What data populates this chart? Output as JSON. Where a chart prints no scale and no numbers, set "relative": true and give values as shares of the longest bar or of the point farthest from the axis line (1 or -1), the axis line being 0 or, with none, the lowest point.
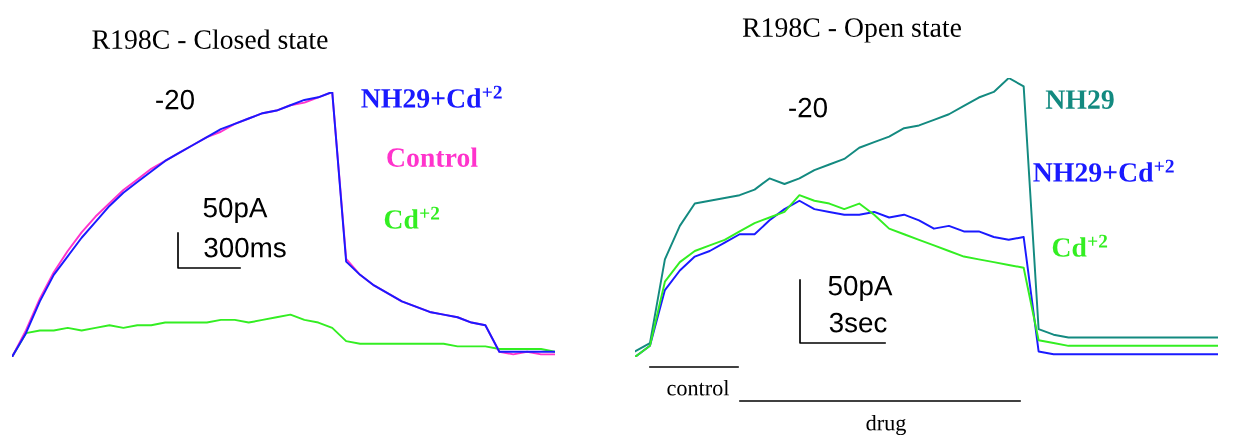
{
  "chart_data": [
    {
      "type": "line",
      "title": "R198C - Closed state",
      "relative": true,
      "annotations": [
        "-20",
        "50pA",
        "300ms"
      ],
      "categories": [
        null,
        null,
        null,
        null,
        null,
        null,
        null,
        null,
        null,
        null,
        null,
        null,
        null,
        null,
        null,
        null,
        null,
        null,
        null,
        null,
        null,
        null,
        null,
        null,
        null,
        null,
        null,
        null,
        null,
        null,
        null,
        null,
        null,
        null,
        null,
        null,
        null,
        null,
        null,
        null
      ],
      "series": [
        {
          "name": "Cd$^{+2}$",
          "color": "#33ee22",
          "values": [
            0.0,
            0.09,
            0.1,
            0.1,
            0.11,
            0.1,
            0.11,
            0.12,
            0.11,
            0.12,
            0.12,
            0.13,
            0.13,
            0.13,
            0.13,
            0.14,
            0.14,
            0.13,
            0.14,
            0.15,
            0.16,
            0.14,
            0.13,
            0.11,
            0.06,
            0.05,
            0.05,
            0.05,
            0.05,
            0.05,
            0.05,
            0.05,
            0.04,
            0.04,
            0.04,
            0.03,
            0.03,
            0.03,
            0.03,
            0.02
          ]
        },
        {
          "name": "Control",
          "color": "#ff33cc",
          "values": [
            0.0,
            0.1,
            0.22,
            0.32,
            0.4,
            0.47,
            0.53,
            0.58,
            0.63,
            0.67,
            0.71,
            0.74,
            0.77,
            0.8,
            0.83,
            0.85,
            0.88,
            0.9,
            0.92,
            0.93,
            0.95,
            0.96,
            0.98,
            1.0,
            0.37,
            0.31,
            0.27,
            0.24,
            0.21,
            0.19,
            0.17,
            0.16,
            0.15,
            0.13,
            0.12,
            0.02,
            0.01,
            0.02,
            0.01,
            0.01
          ]
        },
        {
          "name": "NH29+Cd$^{+2}$",
          "color": "#1a1aff",
          "values": [
            0.0,
            0.09,
            0.21,
            0.31,
            0.38,
            0.45,
            0.51,
            0.57,
            0.62,
            0.66,
            0.7,
            0.74,
            0.77,
            0.8,
            0.83,
            0.86,
            0.88,
            0.9,
            0.92,
            0.93,
            0.95,
            0.97,
            0.98,
            1.0,
            0.36,
            0.31,
            0.27,
            0.24,
            0.21,
            0.19,
            0.17,
            0.16,
            0.15,
            0.13,
            0.12,
            0.02,
            0.02,
            0.02,
            0.02,
            0.02
          ]
        }
      ]
    },
    {
      "type": "line",
      "title": "R198C - Open state",
      "relative": true,
      "annotations": [
        "-20",
        "50pA",
        "3sec",
        "control",
        "drug"
      ],
      "categories": [
        null,
        null,
        null,
        null,
        null,
        null,
        null,
        null,
        null,
        null,
        null,
        null,
        null,
        null,
        null,
        null,
        null,
        null,
        null,
        null,
        null,
        null,
        null,
        null,
        null,
        null,
        null,
        null,
        null,
        null,
        null,
        null,
        null,
        null,
        null,
        null,
        null,
        null,
        null,
        null
      ],
      "series": [
        {
          "name": "NH29",
          "color": "#138a80",
          "values": [
            0.02,
            0.05,
            0.35,
            0.47,
            0.55,
            0.56,
            0.57,
            0.58,
            0.6,
            0.64,
            0.62,
            0.64,
            0.67,
            0.69,
            0.71,
            0.75,
            0.77,
            0.79,
            0.82,
            0.83,
            0.85,
            0.87,
            0.9,
            0.93,
            0.95,
            1.0,
            0.97,
            0.1,
            0.08,
            0.07,
            0.07,
            0.07,
            0.07,
            0.07,
            0.07,
            0.07,
            0.07,
            0.07,
            0.07,
            0.07
          ]
        },
        {
          "name": "NH29+Cd$^{+2}$",
          "color": "#1a1aff",
          "values": [
            0.0,
            0.04,
            0.24,
            0.31,
            0.36,
            0.38,
            0.41,
            0.44,
            0.44,
            0.49,
            0.53,
            0.56,
            0.53,
            0.52,
            0.51,
            0.51,
            0.52,
            0.5,
            0.51,
            0.49,
            0.46,
            0.47,
            0.45,
            0.45,
            0.43,
            0.42,
            0.43,
            0.02,
            0.01,
            0.01,
            0.01,
            0.01,
            0.01,
            0.01,
            0.01,
            0.01,
            0.01,
            0.01,
            0.01,
            0.01
          ]
        },
        {
          "name": "Cd$^{+2}$",
          "color": "#33ee22",
          "values": [
            0.0,
            0.04,
            0.27,
            0.34,
            0.38,
            0.4,
            0.42,
            0.45,
            0.48,
            0.5,
            0.52,
            0.58,
            0.56,
            0.55,
            0.53,
            0.55,
            0.51,
            0.46,
            0.44,
            0.42,
            0.4,
            0.38,
            0.36,
            0.35,
            0.34,
            0.33,
            0.32,
            0.06,
            0.05,
            0.04,
            0.04,
            0.04,
            0.04,
            0.04,
            0.04,
            0.04,
            0.04,
            0.04,
            0.04,
            0.04
          ]
        }
      ]
    }
  ]
}
